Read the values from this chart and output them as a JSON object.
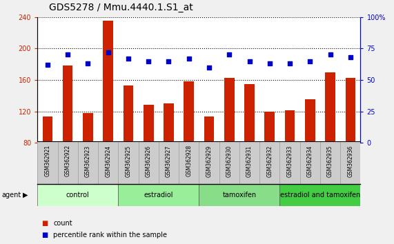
{
  "title": "GDS5278 / Mmu.4440.1.S1_at",
  "categories": [
    "GSM362921",
    "GSM362922",
    "GSM362923",
    "GSM362924",
    "GSM362925",
    "GSM362926",
    "GSM362927",
    "GSM362928",
    "GSM362929",
    "GSM362930",
    "GSM362931",
    "GSM362932",
    "GSM362933",
    "GSM362934",
    "GSM362935",
    "GSM362936"
  ],
  "bar_values": [
    113,
    178,
    118,
    235,
    153,
    128,
    130,
    158,
    113,
    163,
    155,
    120,
    121,
    135,
    170,
    163
  ],
  "dot_values": [
    62,
    70,
    63,
    72,
    67,
    65,
    65,
    67,
    60,
    70,
    65,
    63,
    63,
    65,
    70,
    68
  ],
  "bar_color": "#cc2200",
  "dot_color": "#0000cc",
  "ylim_left": [
    80,
    240
  ],
  "ylim_right": [
    0,
    100
  ],
  "yticks_left": [
    80,
    120,
    160,
    200,
    240
  ],
  "yticks_right": [
    0,
    25,
    50,
    75,
    100
  ],
  "ytick_labels_right": [
    "0",
    "25",
    "50",
    "75",
    "100%"
  ],
  "groups": [
    {
      "label": "control",
      "start": 0,
      "end": 4,
      "color": "#ccffcc"
    },
    {
      "label": "estradiol",
      "start": 4,
      "end": 8,
      "color": "#99ee99"
    },
    {
      "label": "tamoxifen",
      "start": 8,
      "end": 12,
      "color": "#88dd88"
    },
    {
      "label": "estradiol and tamoxifen",
      "start": 12,
      "end": 16,
      "color": "#44cc44"
    }
  ],
  "agent_label": "agent",
  "legend_count_label": "count",
  "legend_pct_label": "percentile rank within the sample",
  "fig_bg_color": "#f0f0f0",
  "plot_bg_color": "#ffffff",
  "xtick_bg_color": "#cccccc",
  "title_fontsize": 10,
  "tick_fontsize": 7,
  "label_fontsize": 7,
  "group_label_fontsize": 7
}
